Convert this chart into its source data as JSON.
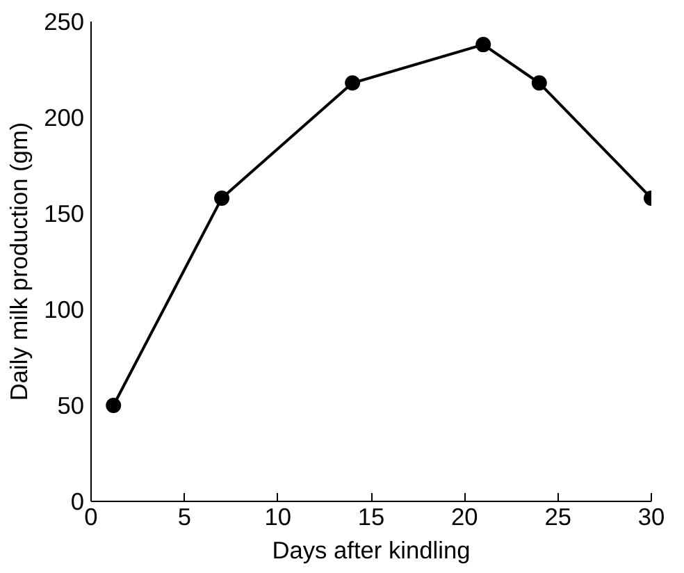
{
  "chart_data": {
    "type": "line",
    "xlabel": "Days after kindling",
    "ylabel": "Daily milk production (gm)",
    "x": [
      1.2,
      7,
      14,
      21,
      24,
      30
    ],
    "series": [
      {
        "color": "#000000",
        "values": [
          50,
          158,
          218,
          238,
          218,
          158
        ]
      }
    ],
    "xlim": [
      0,
      30
    ],
    "xticks": [
      0,
      5,
      10,
      15,
      20,
      25,
      30
    ],
    "ylim": [
      0,
      250
    ],
    "yticks": [
      0,
      50,
      100,
      150,
      200,
      250
    ],
    "marker": "circle",
    "line_style": "solid",
    "grid": false
  }
}
